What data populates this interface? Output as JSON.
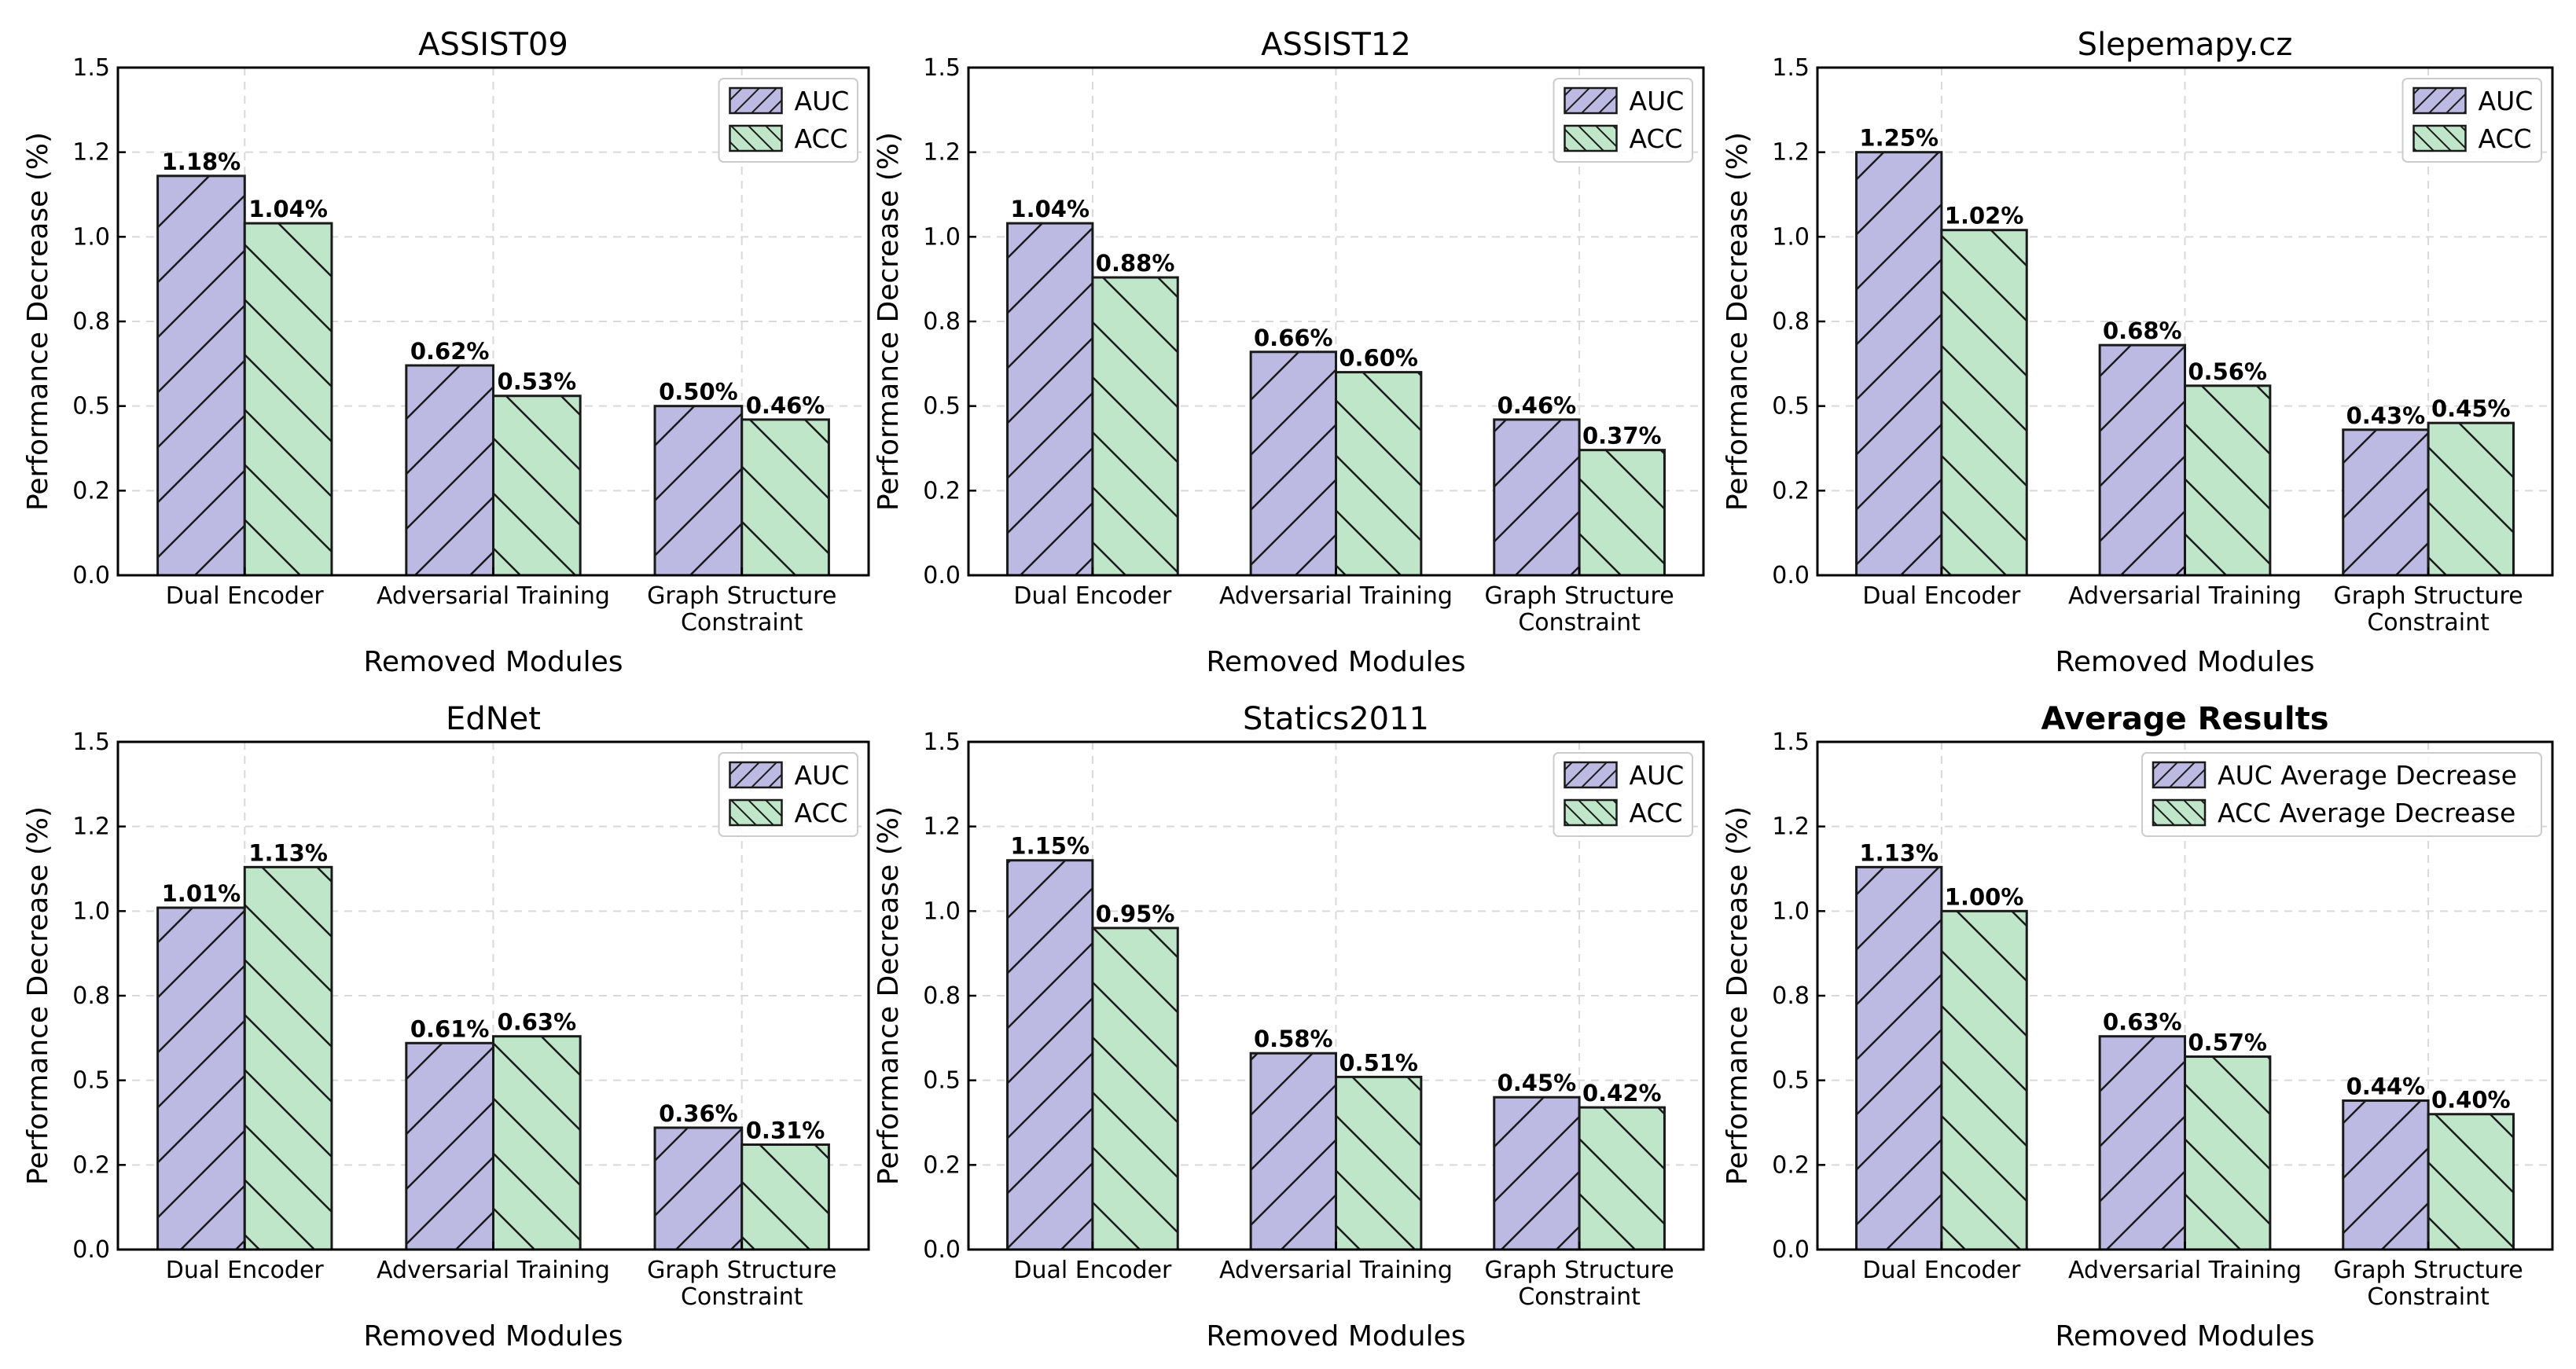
{
  "colors": {
    "auc": "#bcb9e2",
    "acc": "#bfe6c9",
    "edge": "#1a1a1a"
  },
  "chart_data": [
    {
      "type": "bar",
      "title": "ASSIST09",
      "title_bold": false,
      "xlabel": "Removed Modules",
      "ylabel": "Performance Decrease (%)",
      "ylim": [
        0,
        1.5
      ],
      "yticks": [
        0.0,
        0.25,
        0.5,
        0.75,
        1.0,
        1.25,
        1.5
      ],
      "ytick_labels": [
        "0.0",
        "0.2",
        "0.5",
        "0.8",
        "1.0",
        "1.2",
        "1.5"
      ],
      "categories": [
        [
          "Dual Encoder"
        ],
        [
          "Adversarial Training"
        ],
        [
          "Graph Structure",
          "Constraint"
        ]
      ],
      "series": [
        {
          "name": "AUC",
          "values": [
            1.18,
            0.62,
            0.5
          ],
          "labels": [
            "1.18%",
            "0.62%",
            "0.50%"
          ]
        },
        {
          "name": "ACC",
          "values": [
            1.04,
            0.53,
            0.46
          ],
          "labels": [
            "1.04%",
            "0.53%",
            "0.46%"
          ]
        }
      ],
      "legend": {
        "position": "top-right",
        "entries": [
          "AUC",
          "ACC"
        ]
      }
    },
    {
      "type": "bar",
      "title": "ASSIST12",
      "title_bold": false,
      "xlabel": "Removed Modules",
      "ylabel": "Performance Decrease (%)",
      "ylim": [
        0,
        1.5
      ],
      "yticks": [
        0.0,
        0.25,
        0.5,
        0.75,
        1.0,
        1.25,
        1.5
      ],
      "ytick_labels": [
        "0.0",
        "0.2",
        "0.5",
        "0.8",
        "1.0",
        "1.2",
        "1.5"
      ],
      "categories": [
        [
          "Dual Encoder"
        ],
        [
          "Adversarial Training"
        ],
        [
          "Graph Structure",
          "Constraint"
        ]
      ],
      "series": [
        {
          "name": "AUC",
          "values": [
            1.04,
            0.66,
            0.46
          ],
          "labels": [
            "1.04%",
            "0.66%",
            "0.46%"
          ]
        },
        {
          "name": "ACC",
          "values": [
            0.88,
            0.6,
            0.37
          ],
          "labels": [
            "0.88%",
            "0.60%",
            "0.37%"
          ]
        }
      ],
      "legend": {
        "position": "top-right",
        "entries": [
          "AUC",
          "ACC"
        ]
      }
    },
    {
      "type": "bar",
      "title": "Slepemapy.cz",
      "title_bold": false,
      "xlabel": "Removed Modules",
      "ylabel": "Performance Decrease (%)",
      "ylim": [
        0,
        1.5
      ],
      "yticks": [
        0.0,
        0.25,
        0.5,
        0.75,
        1.0,
        1.25,
        1.5
      ],
      "ytick_labels": [
        "0.0",
        "0.2",
        "0.5",
        "0.8",
        "1.0",
        "1.2",
        "1.5"
      ],
      "categories": [
        [
          "Dual Encoder"
        ],
        [
          "Adversarial Training"
        ],
        [
          "Graph Structure",
          "Constraint"
        ]
      ],
      "series": [
        {
          "name": "AUC",
          "values": [
            1.25,
            0.68,
            0.43
          ],
          "labels": [
            "1.25%",
            "0.68%",
            "0.43%"
          ]
        },
        {
          "name": "ACC",
          "values": [
            1.02,
            0.56,
            0.45
          ],
          "labels": [
            "1.02%",
            "0.56%",
            "0.45%"
          ]
        }
      ],
      "legend": {
        "position": "top-right",
        "entries": [
          "AUC",
          "ACC"
        ]
      }
    },
    {
      "type": "bar",
      "title": "EdNet",
      "title_bold": false,
      "xlabel": "Removed Modules",
      "ylabel": "Performance Decrease (%)",
      "ylim": [
        0,
        1.5
      ],
      "yticks": [
        0.0,
        0.25,
        0.5,
        0.75,
        1.0,
        1.25,
        1.5
      ],
      "ytick_labels": [
        "0.0",
        "0.2",
        "0.5",
        "0.8",
        "1.0",
        "1.2",
        "1.5"
      ],
      "categories": [
        [
          "Dual Encoder"
        ],
        [
          "Adversarial Training"
        ],
        [
          "Graph Structure",
          "Constraint"
        ]
      ],
      "series": [
        {
          "name": "AUC",
          "values": [
            1.01,
            0.61,
            0.36
          ],
          "labels": [
            "1.01%",
            "0.61%",
            "0.36%"
          ]
        },
        {
          "name": "ACC",
          "values": [
            1.13,
            0.63,
            0.31
          ],
          "labels": [
            "1.13%",
            "0.63%",
            "0.31%"
          ]
        }
      ],
      "legend": {
        "position": "top-right",
        "entries": [
          "AUC",
          "ACC"
        ]
      }
    },
    {
      "type": "bar",
      "title": "Statics2011",
      "title_bold": false,
      "xlabel": "Removed Modules",
      "ylabel": "Performance Decrease (%)",
      "ylim": [
        0,
        1.5
      ],
      "yticks": [
        0.0,
        0.25,
        0.5,
        0.75,
        1.0,
        1.25,
        1.5
      ],
      "ytick_labels": [
        "0.0",
        "0.2",
        "0.5",
        "0.8",
        "1.0",
        "1.2",
        "1.5"
      ],
      "categories": [
        [
          "Dual Encoder"
        ],
        [
          "Adversarial Training"
        ],
        [
          "Graph Structure",
          "Constraint"
        ]
      ],
      "series": [
        {
          "name": "AUC",
          "values": [
            1.15,
            0.58,
            0.45
          ],
          "labels": [
            "1.15%",
            "0.58%",
            "0.45%"
          ]
        },
        {
          "name": "ACC",
          "values": [
            0.95,
            0.51,
            0.42
          ],
          "labels": [
            "0.95%",
            "0.51%",
            "0.42%"
          ]
        }
      ],
      "legend": {
        "position": "top-right",
        "entries": [
          "AUC",
          "ACC"
        ]
      }
    },
    {
      "type": "bar",
      "title": "Average Results",
      "title_bold": true,
      "xlabel": "Removed Modules",
      "ylabel": "Performance Decrease (%)",
      "ylim": [
        0,
        1.5
      ],
      "yticks": [
        0.0,
        0.25,
        0.5,
        0.75,
        1.0,
        1.25,
        1.5
      ],
      "ytick_labels": [
        "0.0",
        "0.2",
        "0.5",
        "0.8",
        "1.0",
        "1.2",
        "1.5"
      ],
      "categories": [
        [
          "Dual Encoder"
        ],
        [
          "Adversarial Training"
        ],
        [
          "Graph Structure",
          "Constraint"
        ]
      ],
      "series": [
        {
          "name": "AUC Average Decrease",
          "values": [
            1.13,
            0.63,
            0.44
          ],
          "labels": [
            "1.13%",
            "0.63%",
            "0.44%"
          ]
        },
        {
          "name": "ACC Average Decrease",
          "values": [
            1.0,
            0.57,
            0.4
          ],
          "labels": [
            "1.00%",
            "0.57%",
            "0.40%"
          ]
        }
      ],
      "legend": {
        "position": "top-right",
        "entries": [
          "AUC Average Decrease",
          "ACC Average Decrease"
        ]
      }
    }
  ]
}
